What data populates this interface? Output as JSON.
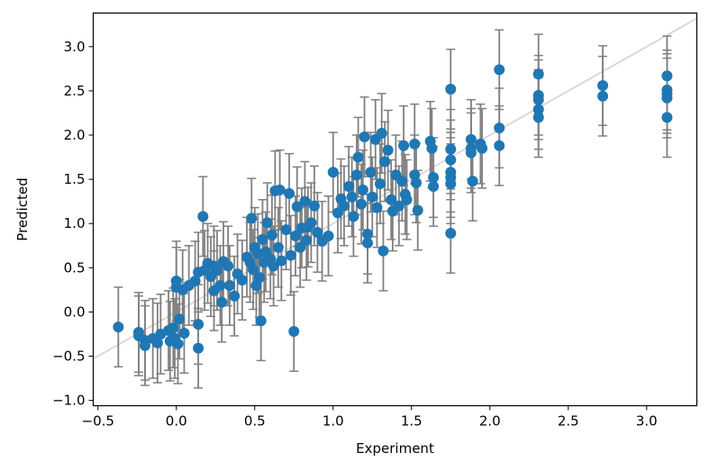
{
  "chart_data": {
    "type": "scatter",
    "title": "",
    "xlabel": "Experiment",
    "ylabel": "Predicted",
    "xlim": [
      -0.53,
      3.32
    ],
    "ylim": [
      -1.06,
      3.38
    ],
    "xticks": [
      -0.5,
      0.0,
      0.5,
      1.0,
      1.5,
      2.0,
      2.5,
      3.0
    ],
    "yticks": [
      -1.0,
      -0.5,
      0.0,
      0.5,
      1.0,
      1.5,
      2.0,
      2.5,
      3.0
    ],
    "xtick_labels": [
      "−0.5",
      "0.0",
      "0.5",
      "1.0",
      "1.5",
      "2.0",
      "2.5",
      "3.0"
    ],
    "ytick_labels": [
      "−1.0",
      "−0.5",
      "0.0",
      "0.5",
      "1.0",
      "1.5",
      "2.0",
      "2.5",
      "3.0"
    ],
    "grid": false,
    "legend": "none",
    "reference_line": {
      "slope": 1,
      "intercept": 0,
      "color": "#d3d3d3"
    },
    "marker_color": "#1f77b4",
    "errorbar_color": "#808080",
    "error": 0.45,
    "points": [
      [
        -0.37,
        -0.17
      ],
      [
        -0.24,
        -0.23
      ],
      [
        -0.24,
        -0.27
      ],
      [
        -0.2,
        -0.32
      ],
      [
        -0.2,
        -0.38
      ],
      [
        -0.15,
        -0.3
      ],
      [
        -0.12,
        -0.35
      ],
      [
        -0.1,
        -0.25
      ],
      [
        -0.05,
        -0.21
      ],
      [
        -0.04,
        -0.33
      ],
      [
        -0.02,
        -0.18
      ],
      [
        -0.01,
        -0.3
      ],
      [
        0.0,
        0.35
      ],
      [
        0.0,
        0.28
      ],
      [
        0.01,
        -0.36
      ],
      [
        0.02,
        -0.08
      ],
      [
        0.04,
        0.25
      ],
      [
        0.05,
        -0.24
      ],
      [
        0.08,
        0.3
      ],
      [
        0.12,
        0.35
      ],
      [
        0.14,
        0.45
      ],
      [
        0.14,
        -0.14
      ],
      [
        0.14,
        -0.41
      ],
      [
        0.17,
        1.08
      ],
      [
        0.18,
        0.47
      ],
      [
        0.2,
        0.55
      ],
      [
        0.22,
        0.4
      ],
      [
        0.24,
        0.52
      ],
      [
        0.24,
        0.24
      ],
      [
        0.26,
        0.47
      ],
      [
        0.28,
        0.3
      ],
      [
        0.29,
        0.11
      ],
      [
        0.3,
        0.57
      ],
      [
        0.33,
        0.52
      ],
      [
        0.34,
        0.3
      ],
      [
        0.37,
        0.18
      ],
      [
        0.39,
        0.43
      ],
      [
        0.42,
        0.36
      ],
      [
        0.45,
        0.62
      ],
      [
        0.47,
        0.56
      ],
      [
        0.48,
        1.06
      ],
      [
        0.49,
        0.48
      ],
      [
        0.5,
        0.73
      ],
      [
        0.51,
        0.3
      ],
      [
        0.52,
        0.66
      ],
      [
        0.53,
        0.39
      ],
      [
        0.54,
        -0.1
      ],
      [
        0.55,
        0.82
      ],
      [
        0.56,
        0.56
      ],
      [
        0.57,
        0.68
      ],
      [
        0.58,
        1.01
      ],
      [
        0.6,
        0.6
      ],
      [
        0.61,
        0.87
      ],
      [
        0.62,
        0.52
      ],
      [
        0.63,
        1.37
      ],
      [
        0.65,
        0.73
      ],
      [
        0.66,
        1.38
      ],
      [
        0.67,
        0.58
      ],
      [
        0.7,
        0.93
      ],
      [
        0.72,
        1.34
      ],
      [
        0.73,
        0.64
      ],
      [
        0.75,
        -0.22
      ],
      [
        0.76,
        0.86
      ],
      [
        0.77,
        1.19
      ],
      [
        0.79,
        0.73
      ],
      [
        0.8,
        0.95
      ],
      [
        0.82,
        1.25
      ],
      [
        0.83,
        0.81
      ],
      [
        0.84,
        0.96
      ],
      [
        0.86,
        1.01
      ],
      [
        0.88,
        1.2
      ],
      [
        0.9,
        0.9
      ],
      [
        0.93,
        0.8
      ],
      [
        0.97,
        0.86
      ],
      [
        1.0,
        1.58
      ],
      [
        1.03,
        1.12
      ],
      [
        1.05,
        1.28
      ],
      [
        1.07,
        1.2
      ],
      [
        1.1,
        1.42
      ],
      [
        1.12,
        1.3
      ],
      [
        1.13,
        1.08
      ],
      [
        1.15,
        1.55
      ],
      [
        1.16,
        1.75
      ],
      [
        1.18,
        1.22
      ],
      [
        1.19,
        1.38
      ],
      [
        1.2,
        1.98
      ],
      [
        1.22,
        0.78
      ],
      [
        1.22,
        0.88
      ],
      [
        1.24,
        1.58
      ],
      [
        1.25,
        1.3
      ],
      [
        1.27,
        1.95
      ],
      [
        1.28,
        1.18
      ],
      [
        1.3,
        1.45
      ],
      [
        1.31,
        2.02
      ],
      [
        1.32,
        0.69
      ],
      [
        1.33,
        1.7
      ],
      [
        1.35,
        1.83
      ],
      [
        1.37,
        1.27
      ],
      [
        1.38,
        1.14
      ],
      [
        1.4,
        1.55
      ],
      [
        1.42,
        1.2
      ],
      [
        1.44,
        1.48
      ],
      [
        1.45,
        1.88
      ],
      [
        1.46,
        1.33
      ],
      [
        1.47,
        1.27
      ],
      [
        1.52,
        1.9
      ],
      [
        1.52,
        1.55
      ],
      [
        1.53,
        1.46
      ],
      [
        1.54,
        1.15
      ],
      [
        1.62,
        1.93
      ],
      [
        1.63,
        1.85
      ],
      [
        1.64,
        1.52
      ],
      [
        1.64,
        1.42
      ],
      [
        1.75,
        2.52
      ],
      [
        1.75,
        1.84
      ],
      [
        1.75,
        1.72
      ],
      [
        1.75,
        1.58
      ],
      [
        1.75,
        1.52
      ],
      [
        1.75,
        1.45
      ],
      [
        1.75,
        0.89
      ],
      [
        1.88,
        1.95
      ],
      [
        1.88,
        1.85
      ],
      [
        1.88,
        1.8
      ],
      [
        1.89,
        1.48
      ],
      [
        1.94,
        1.9
      ],
      [
        1.95,
        1.85
      ],
      [
        2.06,
        2.74
      ],
      [
        2.06,
        2.08
      ],
      [
        2.06,
        1.88
      ],
      [
        2.31,
        2.69
      ],
      [
        2.31,
        2.45
      ],
      [
        2.31,
        2.4
      ],
      [
        2.31,
        2.29
      ],
      [
        2.31,
        2.2
      ],
      [
        2.72,
        2.56
      ],
      [
        2.72,
        2.44
      ],
      [
        3.13,
        2.67
      ],
      [
        3.13,
        2.51
      ],
      [
        3.13,
        2.47
      ],
      [
        3.13,
        2.42
      ],
      [
        3.13,
        2.2
      ]
    ]
  }
}
